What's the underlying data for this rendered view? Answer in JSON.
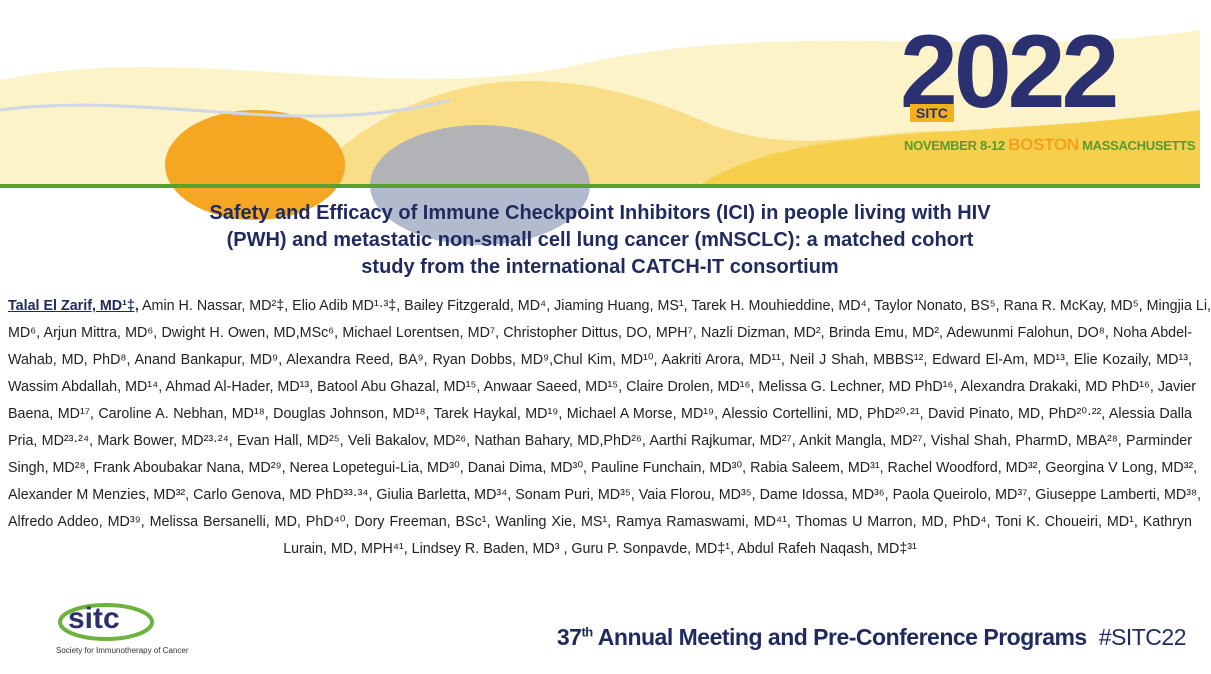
{
  "header": {
    "year": "2022",
    "badge": "SITC",
    "dates": "NOVEMBER 8-12",
    "city": "BOSTON",
    "state": "MASSACHUSETTS"
  },
  "title": [
    "Safety and Efficacy of Immune Checkpoint Inhibitors (ICI) in people living with HIV",
    "(PWH) and metastatic non-small cell lung cancer (mNSCLC): a matched cohort",
    "study from the international CATCH-IT consortium"
  ],
  "authors": {
    "first": "Talal El Zarif, MD¹‡,",
    "lines": [
      "Amin H. Nassar, MD²‡, Elio Adib MD¹·³‡, Bailey Fitzgerald, MD⁴, Jiaming Huang, MS¹, Tarek H. Mouhieddine, MD⁴, Taylor Nonato, BS⁵, Rana R. McKay, MD⁵, Mingjia Li,",
      "MD⁶, Arjun Mittra, MD⁶, Dwight H. Owen, MD,MSc⁶, Michael Lorentsen, MD⁷, Christopher Dittus, DO, MPH⁷, Nazli Dizman, MD², Brinda Emu, MD², Adewunmi Falohun, DO⁸, Noha Abdel-",
      "Wahab, MD, PhD⁸, Anand Bankapur, MD⁹, Alexandra Reed, BA⁹, Ryan Dobbs, MD⁹,Chul Kim, MD¹⁰, Aakriti Arora, MD¹¹, Neil J Shah, MBBS¹², Edward El-Am, MD¹³, Elie Kozaily, MD¹³,",
      "Wassim Abdallah, MD¹⁴, Ahmad Al-Hader, MD¹³, Batool Abu Ghazal, MD¹⁵, Anwaar Saeed, MD¹⁵, Claire Drolen, MD¹⁶, Melissa G. Lechner, MD PhD¹⁶, Alexandra Drakaki, MD PhD¹⁶, Javier",
      "Baena, MD¹⁷, Caroline A. Nebhan, MD¹⁸, Douglas Johnson, MD¹⁸, Tarek Haykal, MD¹⁹, Michael A Morse, MD¹⁹, Alessio Cortellini, MD, PhD²⁰·²¹, David Pinato, MD, PhD²⁰·²², Alessia Dalla",
      "Pria, MD²³·²⁴, Mark Bower, MD²³·²⁴, Evan Hall, MD²⁵, Veli Bakalov, MD²⁶, Nathan Bahary, MD,PhD²⁶, Aarthi Rajkumar, MD²⁷, Ankit Mangla, MD²⁷, Vishal Shah, PharmD, MBA²⁸, Parminder",
      "Singh, MD²⁸, Frank Aboubakar Nana, MD²⁹, Nerea Lopetegui-Lia, MD³⁰, Danai Dima, MD³⁰, Pauline Funchain, MD³⁰, Rabia Saleem, MD³¹, Rachel Woodford, MD³², Georgina V Long, MD³²,",
      "Alexander M Menzies, MD³², Carlo Genova, MD PhD³³·³⁴, Giulia Barletta, MD³⁴, Sonam Puri, MD³⁵, Vaia Florou, MD³⁵, Dame Idossa, MD³⁶, Paola Queirolo, MD³⁷, Giuseppe Lamberti, MD³⁸,",
      "Alfredo Addeo, MD³⁹, Melissa Bersanelli, MD, PhD⁴⁰, Dory Freeman, BSc¹, Wanling Xie, MS¹, Ramya Ramaswami, MD⁴¹, Thomas U Marron, MD, PhD⁴, Toni K. Choueiri, MD¹, Kathryn",
      "Lurain, MD, MPH⁴¹, Lindsey R. Baden, MD³ , Guru P. Sonpavde, MD‡¹, Abdul Rafeh Naqash, MD‡³¹"
    ]
  },
  "footer": {
    "logo": "sitc",
    "org": "Society for Immunotherapy of Cancer",
    "number": "37",
    "ordinal": "th",
    "meeting": "Annual Meeting and Pre-Conference Programs",
    "hashtag": "#SITC22"
  }
}
